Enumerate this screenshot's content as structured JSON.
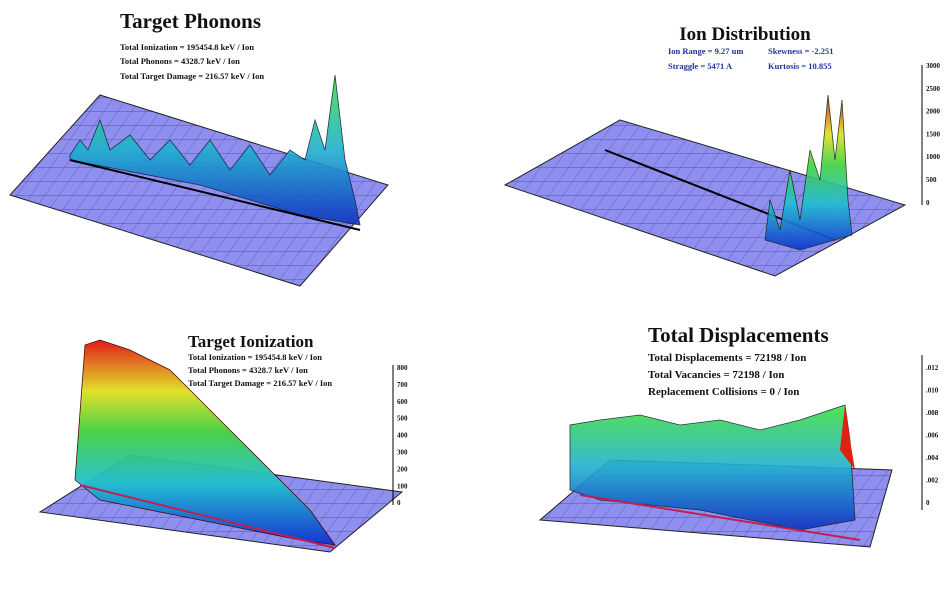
{
  "panels": [
    {
      "title": "Target Phonons",
      "lines": [
        "Total Ionization = 195454.8 keV / Ion",
        "Total Phonons = 4328.7 keV / Ion",
        "Total Target Damage = 216.57 keV / Ion"
      ]
    },
    {
      "title": "Ion Distribution",
      "lines": [
        "Ion Range = 9.27 um",
        "Skewness = -2.251",
        "Straggle = 5471 A",
        "Kurtosis = 10.855"
      ],
      "ticks": [
        "3000",
        "2500",
        "2000",
        "1500",
        "1000",
        "500",
        "0"
      ]
    },
    {
      "title": "Target Ionization",
      "lines": [
        "Total Ionization = 195454.8 keV / Ion",
        "Total Phonons = 4328.7 keV / Ion",
        "Total Target Damage = 216.57 keV / Ion"
      ],
      "ticks": [
        "800",
        "700",
        "600",
        "500",
        "400",
        "300",
        "200",
        "100",
        "0"
      ]
    },
    {
      "title": "Total Displacements",
      "lines": [
        "Total Displacements = 72198 / Ion",
        "Total Vacancies = 72198 / Ion",
        "Replacement Collisions = 0 / Ion"
      ],
      "ticks": [
        ".012",
        ".010",
        ".008",
        ".006",
        ".004",
        ".002",
        "0"
      ]
    }
  ]
}
